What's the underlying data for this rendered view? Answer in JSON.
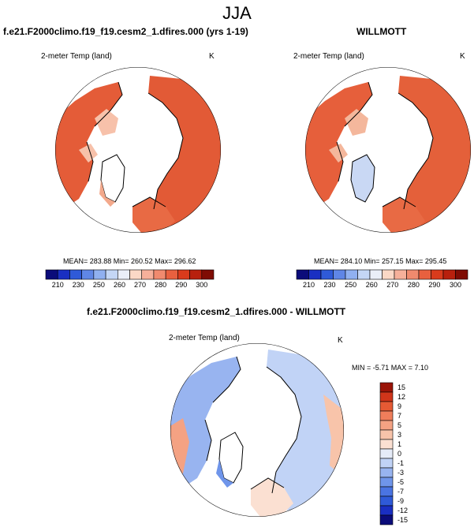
{
  "page_title": "JJA",
  "panel_left": {
    "header": "f.e21.F2000climo.f19_f19.cesm2_1.dfires.000 (yrs 1-19)",
    "subtitle": "2-meter Temp (land)",
    "units": "K",
    "stats": "MEAN= 283.88  Min= 260.52  Max= 296.62"
  },
  "panel_right": {
    "header": "WILLMOTT",
    "subtitle": "2-meter Temp (land)",
    "units": "K",
    "stats": "MEAN= 284.10  Min= 257.15  Max= 295.45"
  },
  "panel_diff": {
    "header": "f.e21.F2000climo.f19_f19.cesm2_1.dfires.000 - WILLMOTT",
    "subtitle": "2-meter Temp (land)",
    "units": "K",
    "stats": "MIN =  -5.71  MAX =   7.10"
  },
  "colors": {
    "abs_scale": [
      "#0b0c7a",
      "#1a2fc2",
      "#2f5ad8",
      "#5f86e6",
      "#90b0f0",
      "#c4d6f5",
      "#eaeef8",
      "#fbd8c6",
      "#f6b09a",
      "#f08a6e",
      "#e8603f",
      "#d93b1c",
      "#b8200d",
      "#7f0c04"
    ],
    "diff_scale": [
      "#0b0c7a",
      "#1a2fc2",
      "#2f5ad8",
      "#4a74e2",
      "#6f95ea",
      "#98b4f0",
      "#c1d3f6",
      "#e6ecf8",
      "#fbe0d2",
      "#f8c4aa",
      "#f4a283",
      "#ef7e5b",
      "#e55a34",
      "#d0351a",
      "#9a1408"
    ]
  },
  "chart_data": [
    {
      "type": "heatmap",
      "title": "2-meter Temp (land)",
      "subtitle": "f.e21.F2000climo.f19_f19.cesm2_1.dfires.000 (yrs 1-19)",
      "units": "K",
      "projection": "polar stereographic (north)",
      "colorbar_ticks": [
        "210",
        "230",
        "250",
        "260",
        "270",
        "280",
        "290",
        "300"
      ],
      "stats": {
        "mean": 283.88,
        "min": 260.52,
        "max": 296.62
      }
    },
    {
      "type": "heatmap",
      "title": "2-meter Temp (land)",
      "subtitle": "WILLMOTT",
      "units": "K",
      "projection": "polar stereographic (north)",
      "colorbar_ticks": [
        "210",
        "230",
        "250",
        "260",
        "270",
        "280",
        "290",
        "300"
      ],
      "stats": {
        "mean": 284.1,
        "min": 257.15,
        "max": 295.45
      }
    },
    {
      "type": "heatmap",
      "title": "2-meter Temp (land)",
      "subtitle": "f.e21.F2000climo.f19_f19.cesm2_1.dfires.000 - WILLMOTT",
      "units": "K",
      "projection": "polar stereographic (north)",
      "colorbar_ticks": [
        "15",
        "12",
        "9",
        "7",
        "5",
        "3",
        "1",
        "0",
        "-1",
        "-3",
        "-5",
        "-7",
        "-9",
        "-12",
        "-15"
      ],
      "stats": {
        "min": -5.71,
        "max": 7.1
      }
    }
  ]
}
